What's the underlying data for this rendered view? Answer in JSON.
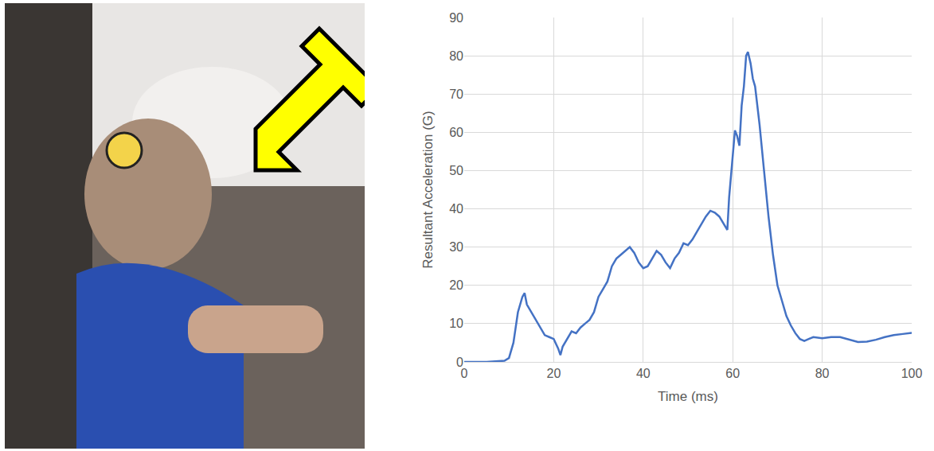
{
  "chart_data": {
    "type": "line",
    "x_label": "Time (ms)",
    "y_label": "Resultant Acceleration (G)",
    "x": [
      0,
      5,
      9,
      10,
      11,
      12,
      13,
      13.5,
      14,
      15,
      16,
      17,
      18,
      19,
      20,
      21,
      21.5,
      22,
      23,
      24,
      25,
      26,
      27,
      28,
      29,
      30,
      31,
      32,
      33,
      34,
      35,
      36,
      37,
      38,
      39,
      40,
      41,
      42,
      43,
      44,
      45,
      46,
      47,
      48,
      49,
      50,
      51,
      52,
      53,
      54,
      55,
      56,
      57,
      58,
      58.8,
      59.2,
      60,
      60.5,
      61,
      61.5,
      62,
      62.5,
      63,
      63.4,
      64,
      64.5,
      65,
      66,
      67,
      68,
      69,
      70,
      71,
      72,
      73,
      74,
      75,
      76,
      77,
      78,
      80,
      82,
      84,
      86,
      88,
      90,
      92,
      94,
      96,
      98,
      100
    ],
    "values": [
      0,
      0,
      0.3,
      1,
      5,
      13,
      17,
      18,
      15,
      13,
      11,
      9,
      7,
      6.5,
      6,
      3.5,
      1.8,
      4,
      6,
      8,
      7.5,
      9,
      10,
      11,
      13,
      17,
      19,
      21,
      25,
      27,
      28,
      29,
      30,
      28.5,
      26,
      24.5,
      25,
      27,
      29,
      28,
      26,
      24.5,
      27,
      28.5,
      31,
      30.5,
      32,
      34,
      36,
      38,
      39.5,
      39,
      38,
      36,
      34.5,
      43,
      55,
      60.5,
      59,
      56.5,
      67,
      72,
      80,
      81,
      78,
      74,
      72,
      62,
      50,
      38,
      28,
      20,
      16,
      12,
      9.5,
      7.5,
      6,
      5.5,
      6,
      6.5,
      6.2,
      6.5,
      6.5,
      5.8,
      5.2,
      5.3,
      5.8,
      6.5,
      7,
      7.3,
      7.6
    ],
    "color": "#4472c4",
    "xlim": [
      0,
      100
    ],
    "xticks": [
      0,
      20,
      40,
      60,
      80,
      100
    ],
    "ylim": [
      0,
      90
    ],
    "yticks": [
      0,
      10,
      20,
      30,
      40,
      50,
      60,
      70,
      80,
      90
    ],
    "grid": true
  }
}
